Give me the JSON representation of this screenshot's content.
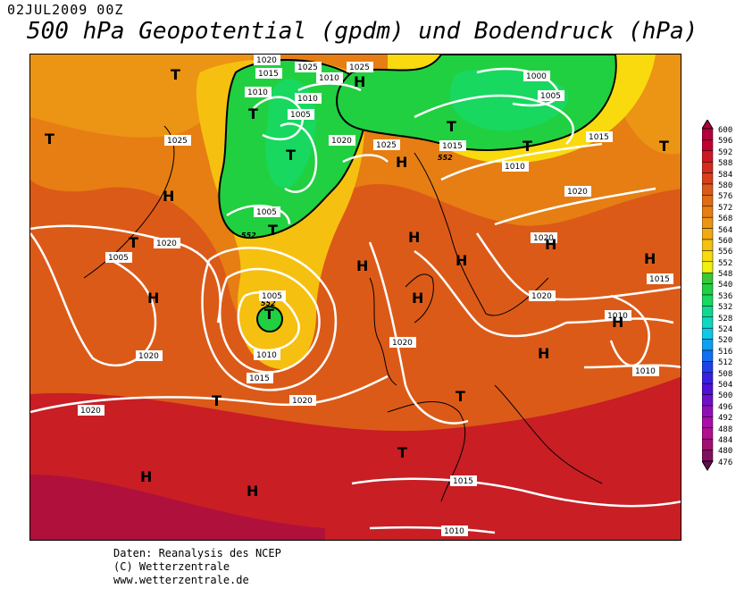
{
  "header": {
    "date": "02JUL2009 00Z",
    "title": "500 hPa Geopotential (gpdm) und Bodendruck (hPa)"
  },
  "credits": {
    "line1": "Daten: Reanalysis des NCEP",
    "line2": "(C) Wetterzentrale",
    "line3": "www.wetterzentrale.de"
  },
  "colorscale": {
    "labels": [
      "600",
      "596",
      "592",
      "588",
      "584",
      "580",
      "576",
      "572",
      "568",
      "564",
      "560",
      "556",
      "552",
      "548",
      "540",
      "536",
      "532",
      "528",
      "524",
      "520",
      "516",
      "512",
      "508",
      "504",
      "500",
      "496",
      "492",
      "488",
      "484",
      "480",
      "476"
    ],
    "colors": [
      "#b0003c",
      "#c00030",
      "#cc1a24",
      "#d42c1e",
      "#d8401a",
      "#dc5a18",
      "#e06c16",
      "#e67e14",
      "#ec9414",
      "#f2aa12",
      "#f6c010",
      "#f8da0e",
      "#f0f010",
      "#38c838",
      "#20d040",
      "#18d860",
      "#10d890",
      "#10d8c0",
      "#10c8e8",
      "#10a0f0",
      "#1070f0",
      "#2040e8",
      "#3820e0",
      "#5010d8",
      "#7010c8",
      "#9010b8",
      "#a810a8",
      "#b01090",
      "#a01070",
      "#801060",
      "#601050"
    ]
  },
  "map": {
    "centers": [
      {
        "letter": "T"
      },
      {
        "letter": "T"
      },
      {
        "letter": "T"
      },
      {
        "letter": "T"
      },
      {
        "letter": "T"
      },
      {
        "letter": "T"
      },
      {
        "letter": "T"
      },
      {
        "letter": "T"
      },
      {
        "letter": "T"
      },
      {
        "letter": "T"
      },
      {
        "letter": "T"
      },
      {
        "letter": "T"
      },
      {
        "letter": "T"
      },
      {
        "letter": "H"
      },
      {
        "letter": "H"
      },
      {
        "letter": "H"
      },
      {
        "letter": "H"
      },
      {
        "letter": "H"
      },
      {
        "letter": "H"
      },
      {
        "letter": "H"
      },
      {
        "letter": "H"
      },
      {
        "letter": "H"
      },
      {
        "letter": "H"
      },
      {
        "letter": "H"
      },
      {
        "letter": "H"
      },
      {
        "letter": "H"
      },
      {
        "letter": "H"
      }
    ],
    "isobar_labels": [
      "1020",
      "1015",
      "1025",
      "1025",
      "1010",
      "1010",
      "1005",
      "1005",
      "1000",
      "1005",
      "1025",
      "1025",
      "1020",
      "1015",
      "1010",
      "1020",
      "1005",
      "1020",
      "1005",
      "1010",
      "1015",
      "1020",
      "1020",
      "1020",
      "1020",
      "1020",
      "1015",
      "1015",
      "1010",
      "1010",
      "1015",
      "1010",
      "1020",
      "1010"
    ],
    "contour_labels": [
      "552",
      "552",
      "552"
    ]
  }
}
